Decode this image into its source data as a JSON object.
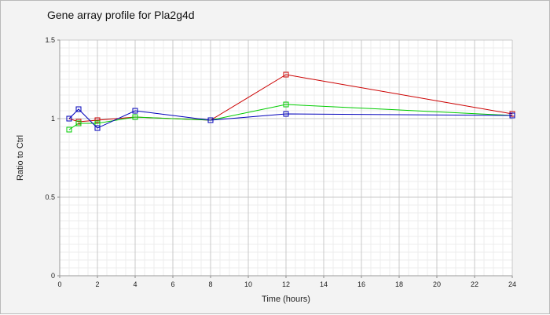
{
  "chart_data": {
    "type": "line",
    "title": "Gene array profile for Pla2g4d",
    "xlabel": "Time (hours)",
    "ylabel": "Ratio to Ctrl",
    "xlim": [
      0,
      24
    ],
    "ylim": [
      0,
      1.5
    ],
    "x_ticks": [
      "0",
      "2",
      "4",
      "6",
      "8",
      "10",
      "12",
      "14",
      "16",
      "18",
      "20",
      "22",
      "24"
    ],
    "y_ticks": [
      "0",
      "0.5",
      "1",
      "1.5"
    ],
    "grid": true,
    "marker": "square",
    "series": [
      {
        "color": "#cc0000",
        "x": [
          0.5,
          1,
          2,
          4,
          8,
          12,
          24
        ],
        "values": [
          1.0,
          0.98,
          0.99,
          1.01,
          0.99,
          1.28,
          1.03
        ]
      },
      {
        "color": "#00cc00",
        "x": [
          0.5,
          1,
          2,
          4,
          8,
          12,
          24
        ],
        "values": [
          0.93,
          0.97,
          0.97,
          1.01,
          0.99,
          1.09,
          1.02
        ]
      },
      {
        "color": "#0000bb",
        "x": [
          0.5,
          1,
          2,
          4,
          8,
          12,
          24
        ],
        "values": [
          1.0,
          1.06,
          0.94,
          1.05,
          0.99,
          1.03,
          1.02
        ]
      }
    ]
  },
  "colors": {
    "background": "#f3f3f3",
    "plot_background": "#ffffff",
    "major_grid": "#c8c8c8",
    "minor_grid": "#ececec"
  }
}
